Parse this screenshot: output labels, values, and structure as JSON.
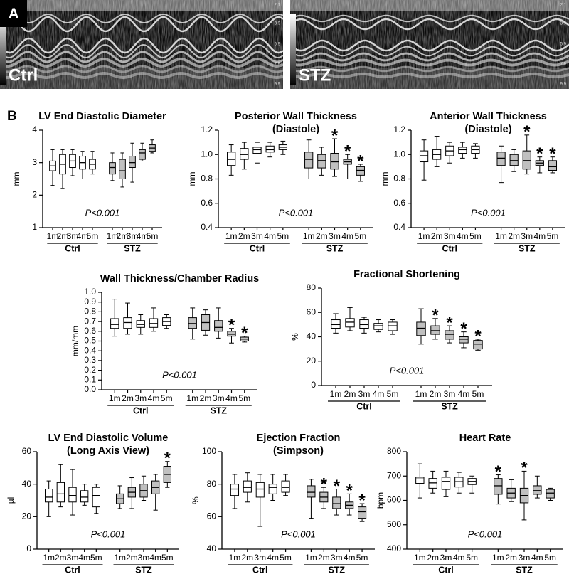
{
  "panel_a": {
    "label": "A",
    "images": [
      {
        "label": "Ctrl",
        "scale": [
          "2.1",
          "3.9",
          "5.9",
          "7.9",
          "9.9"
        ]
      },
      {
        "label": "STZ",
        "scale": [
          "2.1",
          "3.9",
          "5.9",
          "7.9",
          "9.9"
        ]
      }
    ]
  },
  "panel_b_label": "B",
  "chart_data": [
    {
      "type": "box",
      "title": "LV End Diastolic Diameter",
      "ylabel": "mm",
      "annotation": "P<0.001",
      "categories": [
        "1m",
        "2m",
        "3m",
        "4m",
        "5m"
      ],
      "ylim": [
        1,
        4
      ],
      "yticks": [
        1,
        2,
        3,
        4
      ],
      "series": [
        {
          "name": "Ctrl",
          "color": "#ffffff",
          "low": [
            2.3,
            2.2,
            2.6,
            2.5,
            2.65
          ],
          "q1": [
            2.75,
            2.65,
            2.85,
            2.8,
            2.8
          ],
          "median": [
            2.9,
            2.95,
            3.05,
            3.0,
            2.95
          ],
          "q3": [
            3.05,
            3.25,
            3.25,
            3.2,
            3.1
          ],
          "high": [
            3.4,
            3.4,
            3.4,
            3.35,
            3.35
          ],
          "flags": [
            null,
            null,
            null,
            null,
            null
          ]
        },
        {
          "name": "STZ",
          "color": "#c0c0c0",
          "low": [
            2.45,
            2.25,
            2.4,
            3.05,
            3.3
          ],
          "q1": [
            2.65,
            2.5,
            2.85,
            3.1,
            3.35
          ],
          "median": [
            2.85,
            2.75,
            3.0,
            3.3,
            3.45
          ],
          "q3": [
            3.0,
            3.1,
            3.2,
            3.4,
            3.55
          ],
          "high": [
            3.3,
            3.3,
            3.6,
            3.6,
            3.7
          ],
          "flags": [
            null,
            null,
            null,
            null,
            null
          ]
        }
      ]
    },
    {
      "type": "box",
      "title": "Posterior Wall Thickness",
      "subtitle": "(Diastole)",
      "ylabel": "mm",
      "annotation": "P<0.001",
      "categories": [
        "1m",
        "2m",
        "3m",
        "4m",
        "5m"
      ],
      "ylim": [
        0.4,
        1.2
      ],
      "yticks": [
        0.4,
        0.6,
        0.8,
        {
          "value": 1,
          "label": "1.0"
        },
        1.2
      ],
      "series": [
        {
          "name": "Ctrl",
          "color": "#ffffff",
          "low": [
            0.83,
            0.88,
            0.93,
            0.98,
            1.0
          ],
          "q1": [
            0.91,
            0.96,
            1.01,
            1.02,
            1.04
          ],
          "median": [
            0.96,
            1.0,
            1.04,
            1.04,
            1.06
          ],
          "q3": [
            1.02,
            1.05,
            1.06,
            1.07,
            1.08
          ],
          "high": [
            1.08,
            1.1,
            1.1,
            1.1,
            1.11
          ],
          "flags": [
            null,
            null,
            null,
            null,
            null
          ]
        },
        {
          "name": "STZ",
          "color": "#c0c0c0",
          "low": [
            0.8,
            0.83,
            0.82,
            0.8,
            0.78
          ],
          "q1": [
            0.89,
            0.89,
            0.88,
            0.92,
            0.83
          ],
          "median": [
            0.96,
            0.95,
            0.94,
            0.94,
            0.87
          ],
          "q3": [
            1.02,
            1.0,
            1.01,
            0.96,
            0.9
          ],
          "high": [
            1.12,
            1.06,
            1.13,
            1.0,
            0.92
          ],
          "flags": [
            null,
            null,
            "*",
            "*",
            "*"
          ]
        }
      ]
    },
    {
      "type": "box",
      "title": "Anterior Wall Thickness",
      "subtitle": "(Diastole)",
      "ylabel": "mm",
      "annotation": "P<0.001",
      "categories": [
        "1m",
        "2m",
        "3m",
        "4m",
        "5m"
      ],
      "ylim": [
        0.4,
        1.2
      ],
      "yticks": [
        0.4,
        0.6,
        0.8,
        {
          "value": 1,
          "label": "1.0"
        },
        1.2
      ],
      "series": [
        {
          "name": "Ctrl",
          "color": "#ffffff",
          "low": [
            0.79,
            0.9,
            0.93,
            0.97,
            0.97
          ],
          "q1": [
            0.94,
            0.96,
            0.99,
            1.01,
            1.01
          ],
          "median": [
            0.99,
            1.0,
            1.03,
            1.04,
            1.04
          ],
          "q3": [
            1.03,
            1.04,
            1.07,
            1.06,
            1.07
          ],
          "high": [
            1.12,
            1.15,
            1.1,
            1.1,
            1.09
          ],
          "flags": [
            null,
            null,
            null,
            null,
            null
          ]
        },
        {
          "name": "STZ",
          "color": "#c0c0c0",
          "low": [
            0.77,
            0.86,
            0.84,
            0.85,
            0.85
          ],
          "q1": [
            0.91,
            0.91,
            0.88,
            0.91,
            0.87
          ],
          "median": [
            0.97,
            0.95,
            0.95,
            0.93,
            0.9
          ],
          "q3": [
            1.02,
            1.0,
            1.03,
            0.95,
            0.95
          ],
          "high": [
            1.07,
            1.04,
            1.16,
            0.98,
            0.98
          ],
          "flags": [
            null,
            null,
            "*",
            "*",
            "*"
          ]
        }
      ]
    },
    {
      "type": "box",
      "title": "Wall Thickness/Chamber Radius",
      "ylabel": "mm/mm",
      "annotation": "P<0.001",
      "categories": [
        "1m",
        "2m",
        "3m",
        "4m",
        "5m"
      ],
      "ylim": [
        0,
        1
      ],
      "yticks": [
        {
          "value": 0,
          "label": "0.0"
        },
        0.1,
        0.2,
        0.3,
        0.4,
        0.5,
        0.6,
        0.7,
        0.8,
        0.9,
        {
          "value": 1,
          "label": "1.0"
        }
      ],
      "series": [
        {
          "name": "Ctrl",
          "color": "#ffffff",
          "low": [
            0.55,
            0.57,
            0.57,
            0.6,
            0.63
          ],
          "q1": [
            0.63,
            0.63,
            0.64,
            0.64,
            0.66
          ],
          "median": [
            0.67,
            0.69,
            0.67,
            0.68,
            0.7
          ],
          "q3": [
            0.73,
            0.74,
            0.71,
            0.73,
            0.74
          ],
          "high": [
            0.93,
            0.89,
            0.77,
            0.84,
            0.77
          ],
          "flags": [
            null,
            null,
            null,
            null,
            null
          ]
        },
        {
          "name": "STZ",
          "color": "#c0c0c0",
          "low": [
            0.52,
            0.56,
            0.53,
            0.48,
            0.49
          ],
          "q1": [
            0.63,
            0.61,
            0.6,
            0.55,
            0.5
          ],
          "median": [
            0.68,
            0.69,
            0.64,
            0.57,
            0.52
          ],
          "q3": [
            0.74,
            0.77,
            0.71,
            0.6,
            0.54
          ],
          "high": [
            0.84,
            0.82,
            0.84,
            0.63,
            0.55
          ],
          "flags": [
            null,
            null,
            null,
            "*",
            "*"
          ]
        }
      ]
    },
    {
      "type": "box",
      "title": "Fractional Shortening",
      "ylabel": "%",
      "annotation": "P<0.001",
      "categories": [
        "1m",
        "2m",
        "3m",
        "4m",
        "5m"
      ],
      "ylim": [
        0,
        80
      ],
      "yticks": [
        0,
        20,
        40,
        60,
        80
      ],
      "series": [
        {
          "name": "Ctrl",
          "color": "#ffffff",
          "low": [
            43,
            45,
            43,
            44,
            42
          ],
          "q1": [
            47,
            48,
            47,
            46,
            45
          ],
          "median": [
            50,
            52,
            50,
            49,
            49
          ],
          "q3": [
            54,
            55,
            54,
            51,
            52
          ],
          "high": [
            59,
            64,
            56,
            54,
            54
          ],
          "flags": [
            null,
            null,
            null,
            null,
            null
          ]
        },
        {
          "name": "STZ",
          "color": "#c0c0c0",
          "low": [
            34,
            38,
            35,
            31,
            29
          ],
          "q1": [
            41,
            42,
            38,
            35,
            30
          ],
          "median": [
            47,
            45,
            42,
            38,
            34
          ],
          "q3": [
            52,
            49,
            45,
            40,
            37
          ],
          "high": [
            63,
            55,
            49,
            44,
            38
          ],
          "flags": [
            null,
            "*",
            "*",
            "*",
            "*"
          ]
        }
      ]
    },
    {
      "type": "box",
      "title": "LV End Diastolic Volume",
      "subtitle": "(Long Axis View)",
      "ylabel": "µl",
      "annotation": "P<0.001",
      "categories": [
        "1m",
        "2m",
        "3m",
        "4m",
        "5m"
      ],
      "ylim": [
        0,
        60
      ],
      "yticks": [
        0,
        20,
        40,
        60
      ],
      "series": [
        {
          "name": "Ctrl",
          "color": "#ffffff",
          "low": [
            20,
            26,
            21,
            27,
            22
          ],
          "q1": [
            29,
            29,
            29,
            29,
            26
          ],
          "median": [
            32,
            34,
            33,
            32,
            33
          ],
          "q3": [
            37,
            41,
            38,
            36,
            38
          ],
          "high": [
            42,
            52,
            49,
            40,
            40
          ],
          "flags": [
            null,
            null,
            null,
            null,
            null
          ]
        },
        {
          "name": "STZ",
          "color": "#c0c0c0",
          "low": [
            25,
            25,
            30,
            24,
            38
          ],
          "q1": [
            28,
            32,
            32,
            34,
            41
          ],
          "median": [
            31,
            35,
            36,
            38,
            46
          ],
          "q3": [
            34,
            38,
            40,
            42,
            51
          ],
          "high": [
            39,
            44,
            45,
            46,
            54
          ],
          "flags": [
            null,
            null,
            null,
            null,
            "*"
          ]
        }
      ]
    },
    {
      "type": "box",
      "title": "Ejection Fraction",
      "subtitle": "(Simpson)",
      "ylabel": "%",
      "annotation": "P<0.001",
      "categories": [
        "1m",
        "2m",
        "3m",
        "4m",
        "5m"
      ],
      "ylim": [
        40,
        100
      ],
      "yticks": [
        40,
        60,
        80,
        100
      ],
      "series": [
        {
          "name": "Ctrl",
          "color": "#ffffff",
          "low": [
            65,
            69,
            54,
            70,
            73
          ],
          "q1": [
            73,
            75,
            72,
            74,
            75
          ],
          "median": [
            77,
            78,
            77,
            78,
            78
          ],
          "q3": [
            80,
            82,
            81,
            80,
            82
          ],
          "high": [
            86,
            87,
            86,
            86,
            86
          ],
          "flags": [
            null,
            null,
            null,
            null,
            null
          ]
        },
        {
          "name": "STZ",
          "color": "#c0c0c0",
          "low": [
            59,
            65,
            61,
            61,
            57
          ],
          "q1": [
            72,
            69,
            65,
            65,
            59
          ],
          "median": [
            75,
            72,
            68,
            67,
            63
          ],
          "q3": [
            79,
            75,
            72,
            69,
            66
          ],
          "high": [
            83,
            78,
            77,
            74,
            68
          ],
          "flags": [
            null,
            "*",
            "*",
            "*",
            "*"
          ]
        }
      ]
    },
    {
      "type": "box",
      "title": "Heart Rate",
      "ylabel": "bpm",
      "annotation": "P<0.001",
      "categories": [
        "1m",
        "2m",
        "3m",
        "4m",
        "5m"
      ],
      "ylim": [
        400,
        800
      ],
      "yticks": [
        400,
        500,
        600,
        700,
        800
      ],
      "series": [
        {
          "name": "Ctrl",
          "color": "#ffffff",
          "low": [
            610,
            630,
            615,
            630,
            630
          ],
          "q1": [
            670,
            650,
            645,
            655,
            665
          ],
          "median": [
            688,
            672,
            678,
            677,
            678
          ],
          "q3": [
            695,
            690,
            695,
            695,
            690
          ],
          "high": [
            750,
            720,
            720,
            715,
            700
          ],
          "flags": [
            null,
            null,
            null,
            null,
            null
          ]
        },
        {
          "name": "STZ",
          "color": "#c0c0c0",
          "low": [
            585,
            595,
            520,
            610,
            600
          ],
          "q1": [
            625,
            610,
            590,
            625,
            610
          ],
          "median": [
            660,
            630,
            620,
            640,
            630
          ],
          "q3": [
            690,
            650,
            650,
            660,
            645
          ],
          "high": [
            705,
            685,
            720,
            700,
            650
          ],
          "flags": [
            "*",
            null,
            "*",
            null,
            null
          ]
        }
      ]
    }
  ]
}
